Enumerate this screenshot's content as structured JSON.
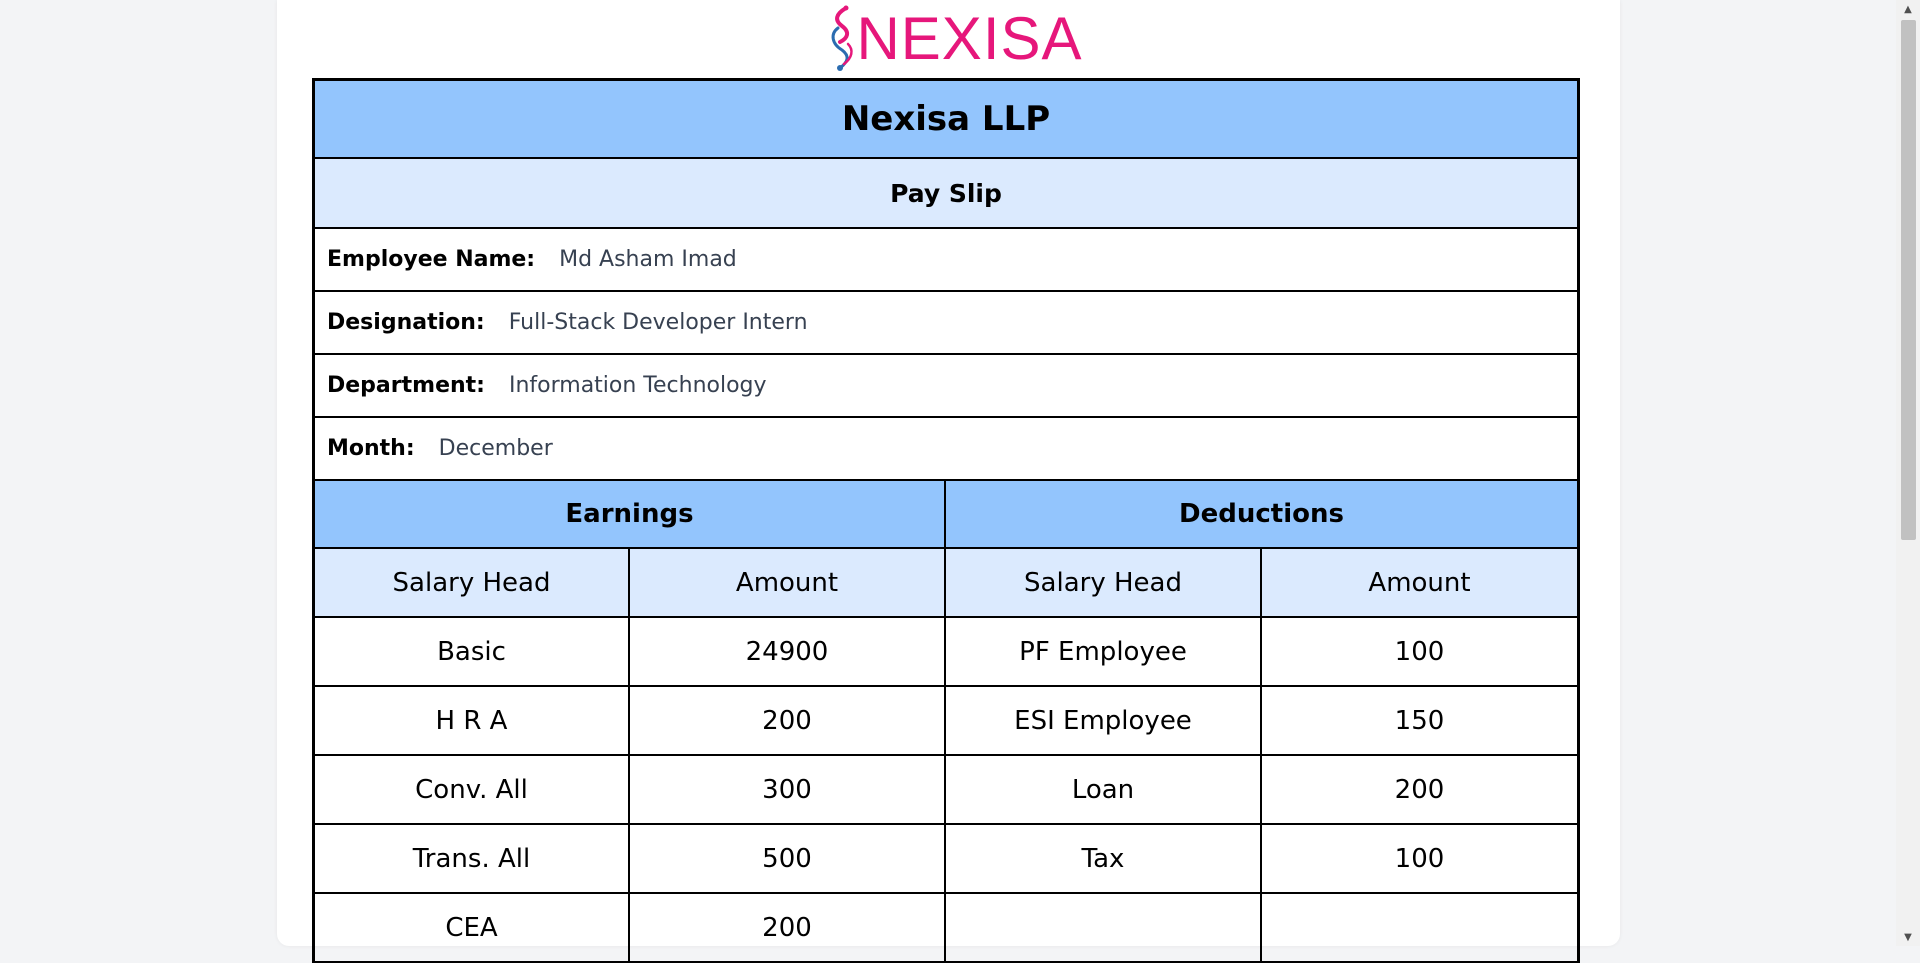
{
  "logo": {
    "text": "NEXISA",
    "color": "#e6177b"
  },
  "company": {
    "name": "Nexisa LLP"
  },
  "document": {
    "title": "Pay Slip"
  },
  "employee": {
    "name_label": "Employee Name:",
    "name_value": "Md Asham Imad",
    "designation_label": "Designation:",
    "designation_value": "Full-Stack Developer Intern",
    "department_label": "Department:",
    "department_value": "Information Technology",
    "month_label": "Month:",
    "month_value": "December"
  },
  "earnings": {
    "title": "Earnings",
    "head_label": "Salary Head",
    "amount_label": "Amount",
    "rows": [
      {
        "head": "Basic",
        "amount": "24900"
      },
      {
        "head": "H R A",
        "amount": "200"
      },
      {
        "head": "Conv. All",
        "amount": "300"
      },
      {
        "head": "Trans. All",
        "amount": "500"
      },
      {
        "head": "CEA",
        "amount": "200"
      }
    ]
  },
  "deductions": {
    "title": "Deductions",
    "head_label": "Salary Head",
    "amount_label": "Amount",
    "rows": [
      {
        "head": "PF Employee",
        "amount": "100"
      },
      {
        "head": "ESI Employee",
        "amount": "150"
      },
      {
        "head": "Loan",
        "amount": "200"
      },
      {
        "head": "Tax",
        "amount": "100"
      },
      {
        "head": "",
        "amount": ""
      }
    ]
  },
  "colors": {
    "header_blue": "#93c5fd",
    "light_blue": "#dbeafe",
    "page_bg": "#f3f4f6"
  }
}
